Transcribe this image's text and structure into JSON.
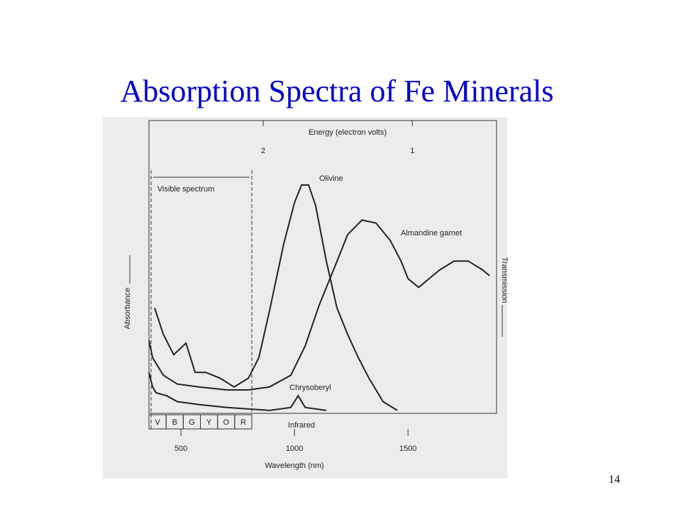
{
  "title": "Absorption Spectra of Fe Minerals",
  "page_number": "14",
  "chart_data": {
    "type": "line",
    "x_label": "Wavelength (nm)",
    "y_label": "Absorbance",
    "y2_label": "Transmission",
    "x2_label": "Energy (electron volts)",
    "visible_label": "Visible spectrum",
    "infrared_label": "Infrared",
    "visible_bands": [
      "V",
      "B",
      "G",
      "Y",
      "O",
      "R"
    ],
    "xlim": [
      359,
      1890
    ],
    "xticks": [
      500,
      1000,
      1500
    ],
    "x2ticks": [
      {
        "value": 862,
        "label": "2"
      },
      {
        "value": 1519,
        "label": "1"
      }
    ],
    "ylim": [
      0,
      100
    ],
    "series": [
      {
        "name": "Olivine",
        "color": "#222222",
        "x": [
          384,
          422,
          468,
          522,
          562,
          609,
          672,
          734,
          797,
          843,
          890,
          953,
          1000,
          1031,
          1062,
          1093,
          1140,
          1187,
          1234,
          1281,
          1328,
          1390,
          1453
        ],
        "values": [
          36,
          27,
          20,
          24,
          14,
          14,
          12,
          9,
          12,
          19,
          35,
          58,
          72,
          78,
          78,
          71,
          52,
          36,
          27,
          19,
          12,
          4,
          1
        ]
      },
      {
        "name": "Almandine garnet",
        "color": "#222222",
        "x": [
          359,
          375,
          422,
          484,
          578,
          703,
          797,
          890,
          984,
          1047,
          1109,
          1172,
          1234,
          1297,
          1359,
          1422,
          1469,
          1500,
          1547,
          1593,
          1640,
          1703,
          1765,
          1828,
          1859
        ],
        "values": [
          25,
          19,
          13,
          10,
          9,
          8,
          8,
          9,
          13,
          23,
          37,
          49,
          61,
          66,
          65,
          59,
          52,
          46,
          43,
          46,
          49,
          52,
          52,
          49,
          47
        ]
      },
      {
        "name": "Chrysoberyl",
        "color": "#222222",
        "x": [
          359,
          375,
          391,
          437,
          484,
          578,
          703,
          890,
          984,
          1016,
          1047,
          1140
        ],
        "values": [
          14,
          9,
          7,
          6,
          4,
          3,
          2,
          1,
          2,
          6,
          2,
          1
        ]
      }
    ]
  }
}
